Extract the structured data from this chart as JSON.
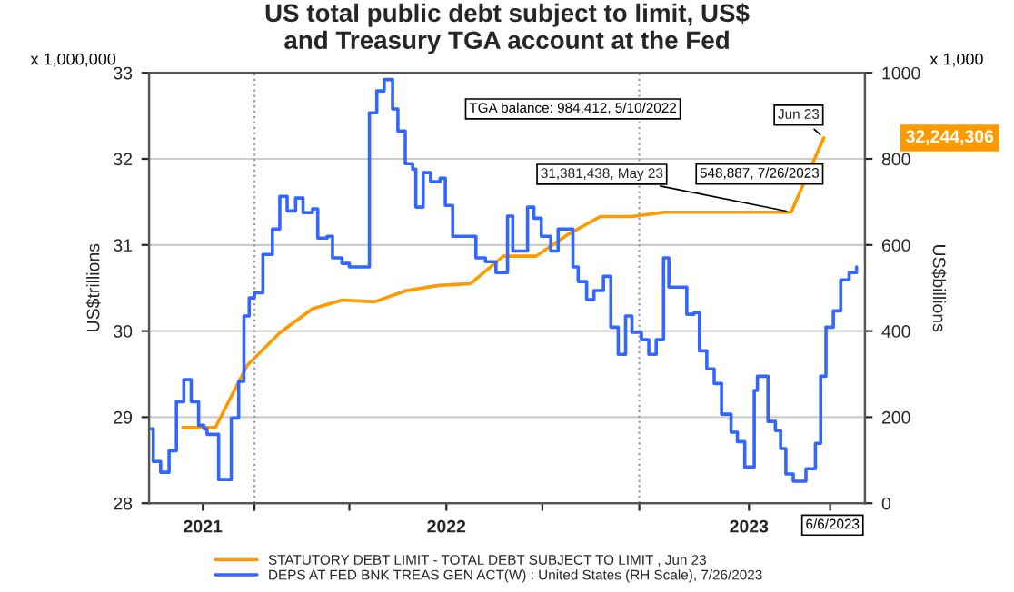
{
  "chart_data": {
    "type": "line",
    "title": "US total public debt subject to limit, US$\nand Treasury TGA account at the Fed",
    "ylabel": "US$trillions",
    "y2label": "US$billions",
    "xlim": [
      "2021-09-23",
      "2023-08-03"
    ],
    "xticks": [
      {
        "value": "2021-11-13",
        "label": "2021"
      },
      {
        "value": "2022-01-01",
        "label": null
      },
      {
        "value": "2022-04-01",
        "label": null
      },
      {
        "value": "2022-07-02",
        "label": "2022"
      },
      {
        "value": "2022-10-01",
        "label": null
      },
      {
        "value": "2023-01-01",
        "label": null
      },
      {
        "value": "2023-04-15",
        "label": "2023"
      },
      {
        "value": "2023-07-01",
        "label": null
      }
    ],
    "ylim": [
      28,
      33
    ],
    "yticks": [
      28,
      29,
      30,
      31,
      32,
      33
    ],
    "y2lim": [
      0,
      1000
    ],
    "y2ticks": [
      0,
      200,
      400,
      600,
      800,
      1000
    ],
    "grid": "y",
    "legend": "bottom",
    "ref_lines": [
      {
        "axis": "x",
        "value": "2022-01-01",
        "color": "#999999",
        "line_style": "dotted"
      },
      {
        "axis": "x",
        "value": "2023-01-01",
        "color": "#999999",
        "line_style": "dotted"
      }
    ],
    "series": [
      {
        "name": "STATUTORY DEBT LIMIT - TOTAL DEBT SUBJECT TO LIMIT , Jun 23",
        "color": "#ff9900",
        "x": [
          "2021-10-25",
          "2021-11-25",
          "2021-12-25",
          "2022-01-25",
          "2022-02-25",
          "2022-03-25",
          "2022-04-25",
          "2022-05-25",
          "2022-06-25",
          "2022-07-25",
          "2022-08-25",
          "2022-09-25",
          "2022-10-25",
          "2022-11-25",
          "2022-12-25",
          "2023-01-25",
          "2023-02-25",
          "2023-03-25",
          "2023-04-25",
          "2023-05-25",
          "2023-06-25"
        ],
        "values": [
          28.88,
          28.88,
          29.6,
          29.98,
          30.26,
          30.36,
          30.34,
          30.47,
          30.53,
          30.55,
          30.87,
          30.87,
          31.12,
          31.33,
          31.33,
          31.38,
          31.38,
          31.38,
          31.38,
          31.381438,
          32.244306
        ]
      },
      {
        "name": "DEPS AT FED BNK TREAS GEN ACT(W) : United States (RH Scale), 7/26/2023",
        "color": "#3366ff",
        "type": "step",
        "axis": "y2",
        "x": [
          "2021-09-24",
          "2021-09-27",
          "2021-10-04",
          "2021-10-12",
          "2021-10-19",
          "2021-10-26",
          "2021-11-02",
          "2021-11-09",
          "2021-11-14",
          "2021-11-17",
          "2021-11-28",
          "2021-12-10",
          "2021-12-17",
          "2021-12-22",
          "2021-12-27",
          "2022-01-01",
          "2022-01-09",
          "2022-01-18",
          "2022-01-25",
          "2022-02-01",
          "2022-02-09",
          "2022-02-16",
          "2022-02-25",
          "2022-03-02",
          "2022-03-11",
          "2022-03-16",
          "2022-03-25",
          "2022-04-01",
          "2022-04-20",
          "2022-04-27",
          "2022-05-04",
          "2022-05-12",
          "2022-05-17",
          "2022-05-24",
          "2022-05-31",
          "2022-06-03",
          "2022-06-10",
          "2022-06-17",
          "2022-06-26",
          "2022-07-01",
          "2022-07-08",
          "2022-07-30",
          "2022-08-08",
          "2022-08-18",
          "2022-08-29",
          "2022-09-03",
          "2022-09-17",
          "2022-09-23",
          "2022-09-30",
          "2022-10-09",
          "2022-10-16",
          "2022-10-30",
          "2022-11-04",
          "2022-11-12",
          "2022-11-19",
          "2022-11-28",
          "2022-12-05",
          "2022-12-12",
          "2022-12-19",
          "2022-12-25",
          "2023-01-03",
          "2023-01-10",
          "2023-01-17",
          "2023-01-24",
          "2023-01-29",
          "2023-02-15",
          "2023-02-22",
          "2023-02-27",
          "2023-03-06",
          "2023-03-13",
          "2023-03-20",
          "2023-03-29",
          "2023-04-04",
          "2023-04-11",
          "2023-04-20",
          "2023-04-23",
          "2023-05-03",
          "2023-05-10",
          "2023-05-15",
          "2023-05-20",
          "2023-05-27",
          "2023-06-08",
          "2023-06-17",
          "2023-06-22",
          "2023-06-27",
          "2023-07-04",
          "2023-07-11",
          "2023-07-19",
          "2023-07-26"
        ],
        "values": [
          173,
          97,
          72,
          122,
          236,
          287,
          236,
          181,
          173,
          160,
          55,
          198,
          283,
          435,
          477,
          489,
          578,
          637,
          713,
          679,
          709,
          675,
          684,
          616,
          620,
          570,
          557,
          549,
          907,
          958,
          984.412,
          916,
          865,
          789,
          776,
          688,
          768,
          747,
          755,
          692,
          620,
          570,
          561,
          536,
          667,
          586,
          688,
          662,
          620,
          586,
          637,
          549,
          515,
          473,
          494,
          527,
          409,
          346,
          435,
          397,
          380,
          346,
          380,
          570,
          502,
          439,
          443,
          354,
          312,
          278,
          207,
          165,
          143,
          84,
          262,
          295,
          190,
          169,
          127,
          68,
          51,
          80,
          139,
          295,
          409,
          447,
          519,
          536,
          548.887
        ]
      }
    ],
    "annotations": [
      "x 1,000,000",
      "x 1,000",
      "TGA balance: 984,412, 5/10/2022",
      "32,244,306",
      "548,887, 7/26/2023",
      "6/6/2023",
      {
        "text": "Jun 23",
        "x": "2023-06-25",
        "y": 32.244306
      },
      {
        "text": "31,381,438, May 23",
        "x": "2023-05-25",
        "y": 31.381438
      }
    ]
  }
}
